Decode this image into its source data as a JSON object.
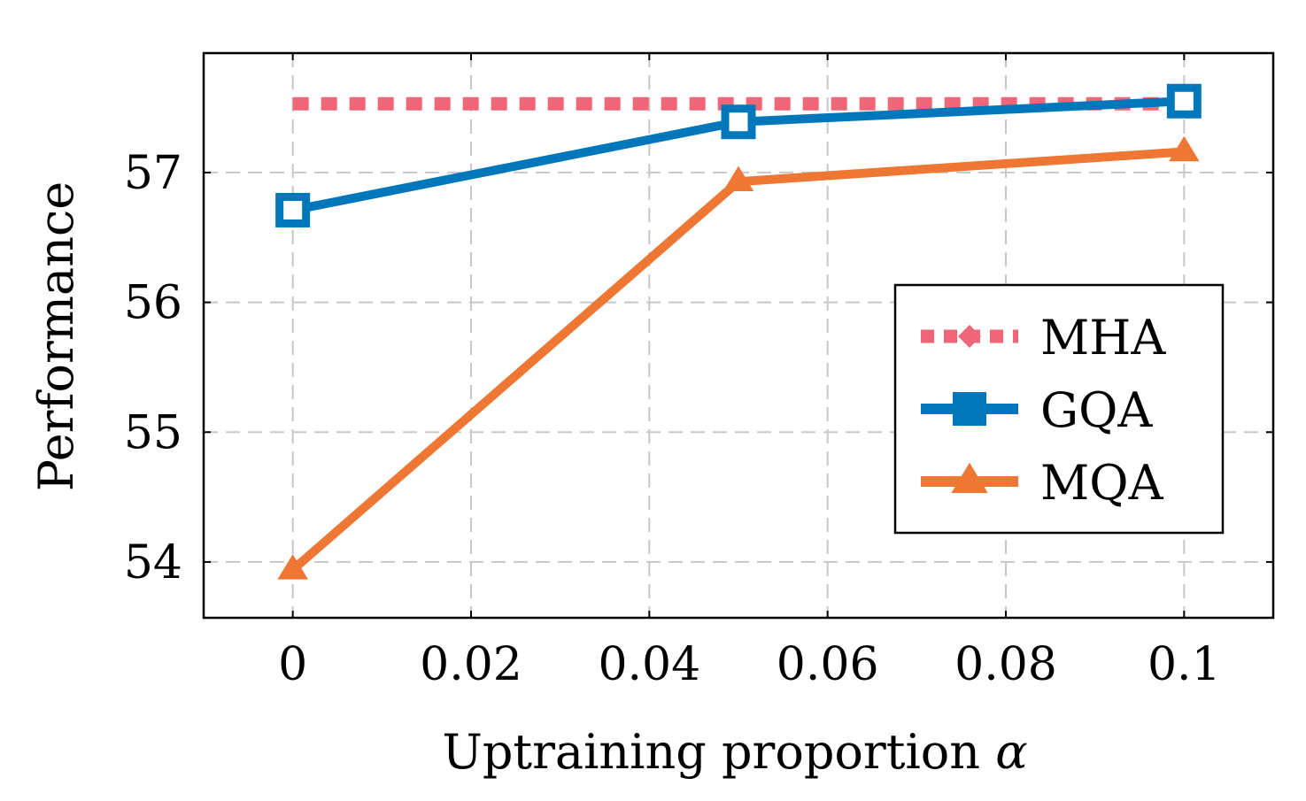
{
  "chart_data": {
    "type": "line",
    "title": "",
    "xlabel": "Uptraining proportion",
    "xlabel_symbol": "α",
    "ylabel": "Performance",
    "xlim": [
      -0.01,
      0.11
    ],
    "ylim": [
      53.57,
      57.92
    ],
    "xticks": [
      0,
      0.02,
      0.04,
      0.06,
      0.08,
      0.1
    ],
    "xtick_labels": [
      "0",
      "0.02",
      "0.04",
      "0.06",
      "0.08",
      "0.1"
    ],
    "yticks": [
      54,
      55,
      56,
      57
    ],
    "ytick_labels": [
      "54",
      "55",
      "56",
      "57"
    ],
    "grid": true,
    "legend_position": "center-right",
    "series": [
      {
        "name": "MHA",
        "color": "#EE6677",
        "style": "dotted",
        "marker": "diamond",
        "x": [
          0,
          0.05,
          0.1
        ],
        "values": [
          57.53,
          57.53,
          57.53
        ]
      },
      {
        "name": "GQA",
        "color": "#0077BB",
        "style": "solid",
        "marker": "square-open",
        "x": [
          0,
          0.05,
          0.1
        ],
        "values": [
          56.71,
          57.39,
          57.55
        ]
      },
      {
        "name": "MQA",
        "color": "#EE7733",
        "style": "solid",
        "marker": "triangle",
        "x": [
          0,
          0.05,
          0.1
        ],
        "values": [
          53.94,
          56.93,
          57.16
        ]
      }
    ]
  }
}
